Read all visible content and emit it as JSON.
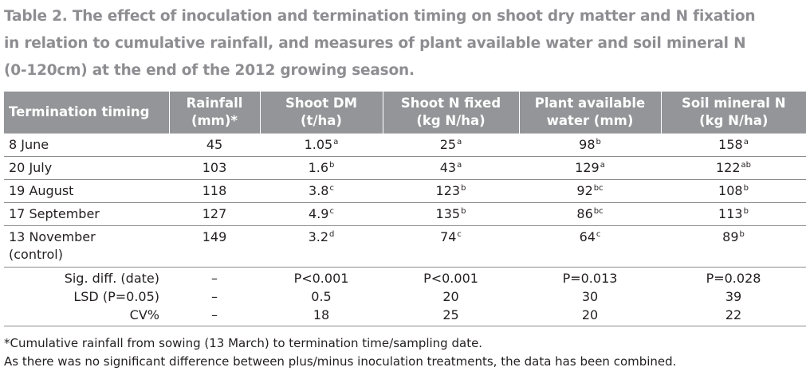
{
  "caption": "Table 2. The effect of inoculation and termination timing on shoot dry matter and N fixation in relation to cumulative rainfall, and measures of plant available water and soil mineral N (0-120cm) at the end of the 2012 growing season.",
  "caption_lines": [
    "Table 2. The effect of inoculation and termination timing on shoot dry matter and N fixation",
    "in relation to cumulative rainfall, and measures of plant available water and soil mineral N",
    "(0-120cm) at the end of the 2012 growing season."
  ],
  "colors": {
    "header_bg": "#939598",
    "header_text": "#ffffff",
    "caption_text": "#8e8d91",
    "rule": "#8c8c8c"
  },
  "table": {
    "headers": [
      {
        "line1": "Termination timing",
        "line2": ""
      },
      {
        "line1": "Rainfall",
        "line2": "(mm)*"
      },
      {
        "line1": "Shoot DM",
        "line2": "(t/ha)"
      },
      {
        "line1": "Shoot N fixed",
        "line2": "(kg N/ha)"
      },
      {
        "line1": "Plant available",
        "line2": "water (mm)"
      },
      {
        "line1": "Soil mineral N",
        "line2": "(kg N/ha)"
      }
    ],
    "rows": [
      {
        "timing": "8 June",
        "timing_note": "",
        "rainfall": "45",
        "shoot_dm": {
          "v": "1.05",
          "sup": "a"
        },
        "shoot_n": {
          "v": "25",
          "sup": "a"
        },
        "paw": {
          "v": "98",
          "sup": "b"
        },
        "soil_n": {
          "v": "158",
          "sup": "a"
        }
      },
      {
        "timing": "20 July",
        "timing_note": "",
        "rainfall": "103",
        "shoot_dm": {
          "v": "1.6",
          "sup": "b"
        },
        "shoot_n": {
          "v": "43",
          "sup": "a"
        },
        "paw": {
          "v": "129",
          "sup": "a"
        },
        "soil_n": {
          "v": "122",
          "sup": "ab"
        }
      },
      {
        "timing": "19 August",
        "timing_note": "",
        "rainfall": "118",
        "shoot_dm": {
          "v": "3.8",
          "sup": "c"
        },
        "shoot_n": {
          "v": "123",
          "sup": "b"
        },
        "paw": {
          "v": "92",
          "sup": "bc"
        },
        "soil_n": {
          "v": "108",
          "sup": "b"
        }
      },
      {
        "timing": "17 September",
        "timing_note": "",
        "rainfall": "127",
        "shoot_dm": {
          "v": "4.9",
          "sup": "c"
        },
        "shoot_n": {
          "v": "135",
          "sup": "b"
        },
        "paw": {
          "v": "86",
          "sup": "bc"
        },
        "soil_n": {
          "v": "113",
          "sup": "b"
        }
      },
      {
        "timing": "13 November",
        "timing_note": "(control)",
        "rainfall": "149",
        "shoot_dm": {
          "v": "3.2",
          "sup": "d"
        },
        "shoot_n": {
          "v": "74",
          "sup": "c"
        },
        "paw": {
          "v": "64",
          "sup": "c"
        },
        "soil_n": {
          "v": "89",
          "sup": "b"
        }
      }
    ],
    "stats": [
      {
        "label": "Sig. diff. (date)",
        "rainfall": "–",
        "shoot_dm": "P<0.001",
        "shoot_n": "P<0.001",
        "paw": "P=0.013",
        "soil_n": "P=0.028"
      },
      {
        "label": "LSD (P=0.05)",
        "rainfall": "–",
        "shoot_dm": "0.5",
        "shoot_n": "20",
        "paw": "30",
        "soil_n": "39"
      },
      {
        "label": "CV%",
        "rainfall": "–",
        "shoot_dm": "18",
        "shoot_n": "25",
        "paw": "20",
        "soil_n": "22"
      }
    ]
  },
  "footnotes": [
    "*Cumulative rainfall from sowing (13 March) to termination time/sampling date.",
    "As there was no significant difference between plus/minus inoculation treatments, the data has been combined."
  ]
}
